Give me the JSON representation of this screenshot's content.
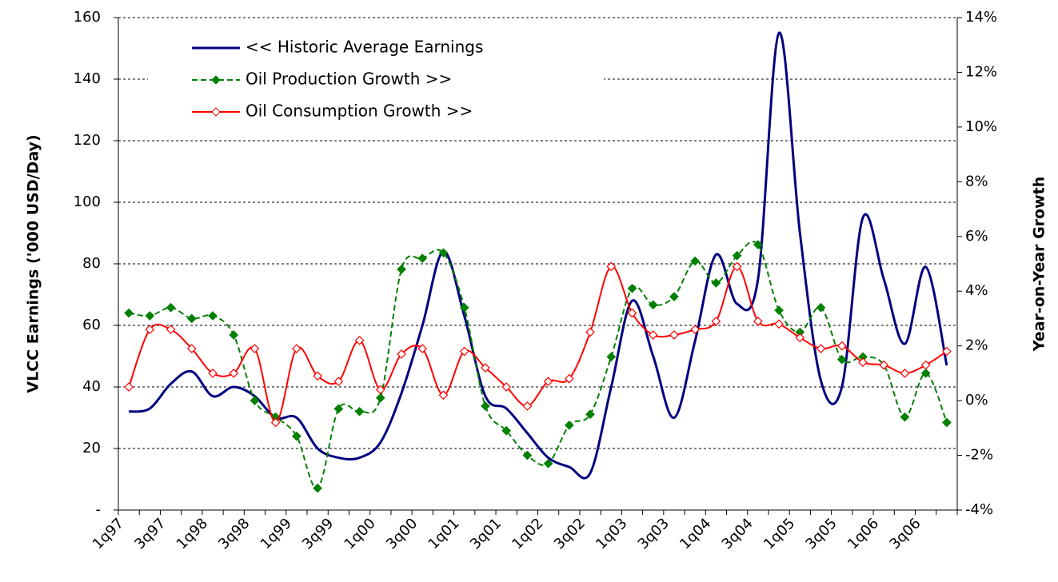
{
  "chart_data": {
    "type": "line",
    "categories": [
      "1q97",
      null,
      "3q97",
      null,
      "1q98",
      null,
      "3q98",
      null,
      "1q99",
      null,
      "3q99",
      null,
      "1q00",
      null,
      "3q00",
      null,
      "1q01",
      null,
      "3q01",
      null,
      "1q02",
      null,
      "3q02",
      null,
      "1q03",
      null,
      "3q03",
      null,
      "1q04",
      null,
      "3q04",
      null,
      "1q05",
      null,
      "3q05",
      null,
      "1q06",
      null,
      "3q06",
      null
    ],
    "ylabel": "VLCC Earnings ('000 USD/Day)",
    "y2label": "Year-on-Year Growth",
    "ylim": [
      0,
      160
    ],
    "yticks": [
      {
        "value": 0,
        "label": "-"
      },
      20,
      40,
      60,
      80,
      100,
      120,
      140,
      160
    ],
    "y2lim": [
      -4,
      14
    ],
    "y2ticks": [
      {
        "value": -4,
        "label": "-4%"
      },
      {
        "value": -2,
        "label": "-2%"
      },
      {
        "value": 0,
        "label": "0%"
      },
      {
        "value": 2,
        "label": "2%"
      },
      {
        "value": 4,
        "label": "4%"
      },
      {
        "value": 6,
        "label": "6%"
      },
      {
        "value": 8,
        "label": "8%"
      },
      {
        "value": 10,
        "label": "10%"
      },
      {
        "value": 12,
        "label": "12%"
      },
      {
        "value": 14,
        "label": "14%"
      }
    ],
    "grid": true,
    "legend": "upper left",
    "series": [
      {
        "name": "<< Historic Average Earnings",
        "color": "#000080",
        "marker": "none",
        "values": [
          32,
          33,
          41,
          45,
          37,
          40,
          37,
          30,
          30,
          20,
          17,
          17,
          22,
          38,
          60,
          84,
          63,
          37,
          33,
          25,
          17,
          14,
          12,
          40,
          68,
          50,
          30,
          55,
          83,
          67,
          75,
          155,
          90,
          42,
          40,
          95,
          75,
          54,
          79,
          47
        ]
      },
      {
        "name": "Oil Production Growth >>",
        "color": "#008000",
        "marker": "filled-diamond",
        "dashed": true,
        "axis": "y2",
        "values": [
          3.2,
          3.1,
          3.4,
          3.0,
          3.1,
          2.4,
          0.0,
          -0.6,
          -1.3,
          -3.2,
          -0.3,
          -0.4,
          0.1,
          4.8,
          5.2,
          5.4,
          3.4,
          -0.2,
          -1.1,
          -2.0,
          -2.3,
          -0.9,
          -0.5,
          1.6,
          4.1,
          3.5,
          3.8,
          5.1,
          4.3,
          5.3,
          5.7,
          3.3,
          2.5,
          3.4,
          1.5,
          1.6,
          1.3,
          -0.6,
          1.0,
          -0.8
        ]
      },
      {
        "name": "Oil Consumption Growth >>",
        "color": "#ff0000",
        "marker": "hollow-diamond",
        "axis": "y2",
        "values": [
          0.5,
          2.6,
          2.6,
          1.9,
          1.0,
          1.0,
          1.9,
          -0.8,
          1.9,
          0.9,
          0.7,
          2.2,
          0.4,
          1.7,
          1.9,
          0.2,
          1.8,
          1.2,
          0.5,
          -0.2,
          0.7,
          0.8,
          2.5,
          4.9,
          3.2,
          2.4,
          2.4,
          2.6,
          2.9,
          4.9,
          2.9,
          2.8,
          2.3,
          1.9,
          2.0,
          1.4,
          1.3,
          1.0,
          1.3,
          1.8
        ]
      }
    ]
  }
}
